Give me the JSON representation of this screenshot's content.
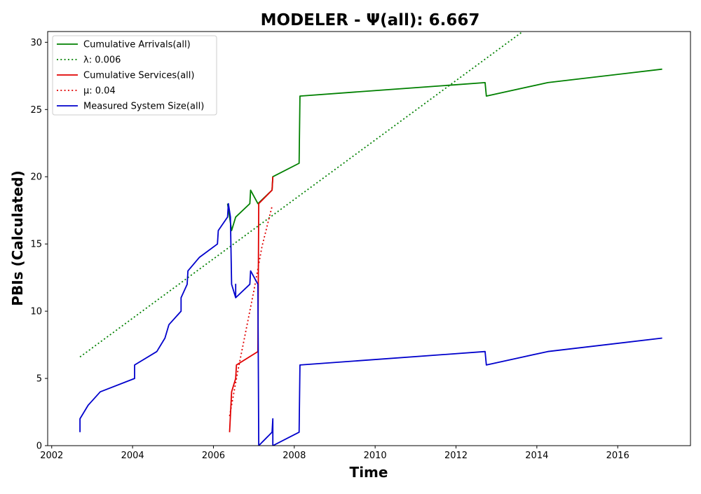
{
  "chart_data": {
    "type": "line",
    "title": "MODELER -  Ψ(all): 6.667",
    "xlabel": "Time",
    "ylabel": "PBIs (Calculated)",
    "xlim": [
      2001.9,
      2017.8
    ],
    "ylim": [
      0,
      30.8
    ],
    "xticks": [
      2002,
      2004,
      2006,
      2008,
      2010,
      2012,
      2014,
      2016
    ],
    "yticks": [
      0,
      5,
      10,
      15,
      20,
      25,
      30
    ],
    "grid": false,
    "legend_position": "top-left",
    "series": [
      {
        "name": "Cumulative Arrivals(all)",
        "color": "#008000",
        "style": "solid",
        "points": [
          [
            2006.35,
            18
          ],
          [
            2006.45,
            16
          ],
          [
            2006.55,
            17
          ],
          [
            2006.9,
            18
          ],
          [
            2006.92,
            19
          ],
          [
            2007.1,
            18
          ],
          [
            2007.45,
            19
          ],
          [
            2007.47,
            20
          ],
          [
            2008.12,
            21
          ],
          [
            2008.14,
            26
          ],
          [
            2012.72,
            27
          ],
          [
            2012.75,
            26
          ],
          [
            2014.27,
            27
          ],
          [
            2017.1,
            28
          ]
        ]
      },
      {
        "name": "λ: 0.006",
        "color": "#008000",
        "style": "dotted",
        "points": [
          [
            2002.7,
            6.6
          ],
          [
            2013.65,
            30.8
          ]
        ]
      },
      {
        "name": "Cumulative Services(all)",
        "color": "#e00000",
        "style": "solid",
        "points": [
          [
            2006.4,
            1
          ],
          [
            2006.45,
            4
          ],
          [
            2006.5,
            4.5
          ],
          [
            2006.55,
            5
          ],
          [
            2006.57,
            6
          ],
          [
            2007.1,
            7
          ],
          [
            2007.12,
            18
          ],
          [
            2007.45,
            19
          ],
          [
            2007.47,
            20
          ]
        ]
      },
      {
        "name": "μ: 0.04",
        "color": "#e00000",
        "style": "dotted",
        "points": [
          [
            2006.4,
            2.2
          ],
          [
            2006.6,
            5.5
          ],
          [
            2006.8,
            8.5
          ],
          [
            2007.0,
            11.5
          ],
          [
            2007.2,
            14.8
          ],
          [
            2007.45,
            17.8
          ]
        ]
      },
      {
        "name": "Measured System Size(all)",
        "color": "#0000cc",
        "style": "solid",
        "points": [
          [
            2002.7,
            1
          ],
          [
            2002.7,
            2
          ],
          [
            2002.9,
            3
          ],
          [
            2003.2,
            4
          ],
          [
            2004.05,
            5
          ],
          [
            2004.05,
            6
          ],
          [
            2004.6,
            7
          ],
          [
            2004.8,
            8
          ],
          [
            2004.9,
            9
          ],
          [
            2005.2,
            10
          ],
          [
            2005.2,
            11
          ],
          [
            2005.35,
            12
          ],
          [
            2005.37,
            13
          ],
          [
            2005.65,
            14
          ],
          [
            2006.1,
            15
          ],
          [
            2006.12,
            16
          ],
          [
            2006.35,
            17
          ],
          [
            2006.37,
            18
          ],
          [
            2006.42,
            17
          ],
          [
            2006.45,
            12
          ],
          [
            2006.55,
            11
          ],
          [
            2006.55,
            12
          ],
          [
            2006.55,
            11
          ],
          [
            2006.9,
            12
          ],
          [
            2006.92,
            13
          ],
          [
            2007.1,
            12
          ],
          [
            2007.12,
            0
          ],
          [
            2007.45,
            1
          ],
          [
            2007.47,
            2
          ],
          [
            2007.47,
            0
          ],
          [
            2008.12,
            1
          ],
          [
            2008.14,
            6
          ],
          [
            2012.72,
            7
          ],
          [
            2012.75,
            6
          ],
          [
            2014.27,
            7
          ],
          [
            2017.1,
            8
          ]
        ]
      }
    ]
  }
}
